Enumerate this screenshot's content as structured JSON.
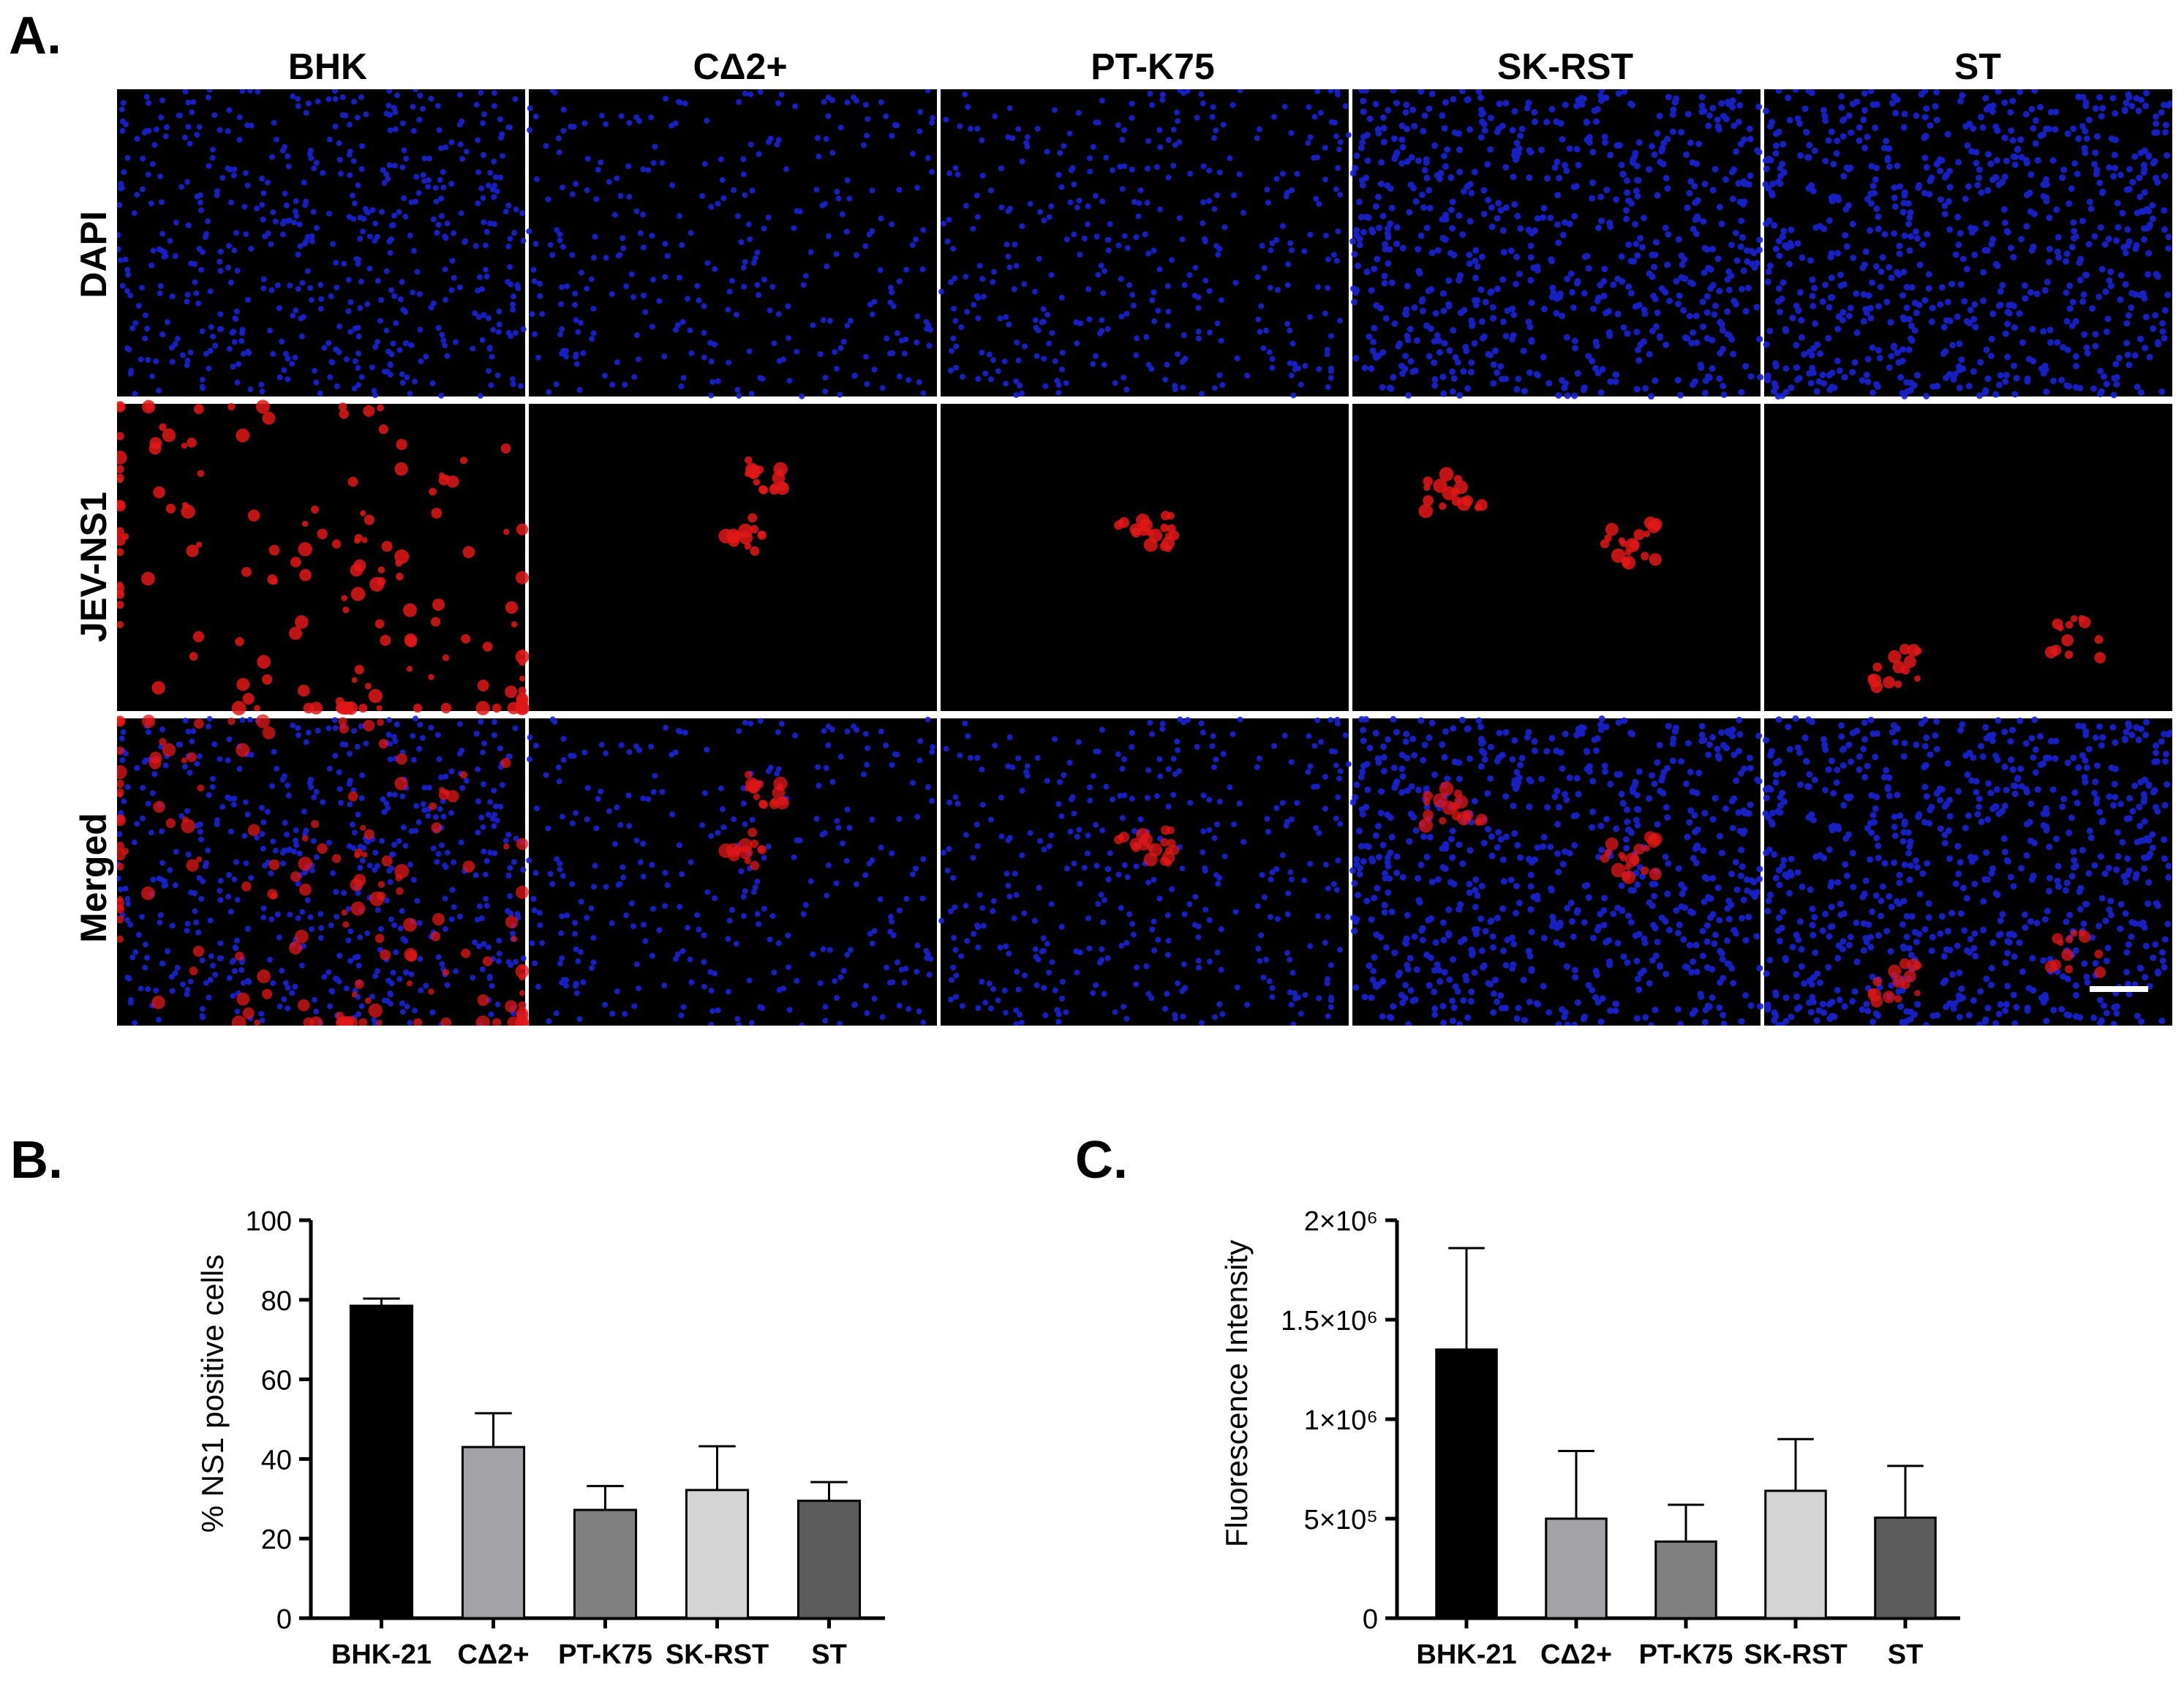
{
  "panels": {
    "a_letter": "A.",
    "b_letter": "B.",
    "c_letter": "C."
  },
  "micrographs": {
    "columns": [
      "BHK",
      "CΔ2+",
      "PT-K75",
      "SK-RST",
      "ST"
    ],
    "rows": [
      "DAPI",
      "JEV-NS1",
      "Merged"
    ],
    "colors": {
      "dapi": "#1a22d6",
      "ns1": "#e01818",
      "background": "#000000"
    },
    "scale_bar": "white scale bar"
  },
  "chart_data": [
    {
      "type": "bar",
      "panel": "B.",
      "categories": [
        "BHK-21",
        "CΔ2+",
        "PT-K75",
        "SK-RST",
        "ST"
      ],
      "values": [
        78.5,
        43.0,
        27.2,
        32.2,
        29.5
      ],
      "errors": [
        1.8,
        8.5,
        6.0,
        11.0,
        4.7
      ],
      "colors": [
        "#000000",
        "#a3a3a7",
        "#808080",
        "#d4d4d4",
        "#5c5c5c"
      ],
      "ylabel": "% NS1 positive cells",
      "xlabel": "",
      "ylim": [
        0,
        100
      ],
      "yticks": [
        0,
        20,
        40,
        60,
        80,
        100
      ],
      "ytick_labels": [
        "0",
        "20",
        "40",
        "60",
        "80",
        "100"
      ]
    },
    {
      "type": "bar",
      "panel": "C.",
      "categories": [
        "BHK-21",
        "CΔ2+",
        "PT-K75",
        "SK-RST",
        "ST"
      ],
      "values": [
        1350000,
        500000,
        385000,
        640000,
        505000
      ],
      "errors": [
        510000,
        340000,
        185000,
        260000,
        260000
      ],
      "colors": [
        "#000000",
        "#a3a3a7",
        "#808080",
        "#d4d4d4",
        "#5c5c5c"
      ],
      "ylabel": "Fluorescence Intensity",
      "xlabel": "",
      "ylim": [
        0,
        2000000
      ],
      "yticks": [
        0,
        500000,
        1000000,
        1500000,
        2000000
      ],
      "ytick_labels": [
        "0",
        "5×10⁵",
        "1×10⁶",
        "1.5×10⁶",
        "2×10⁶"
      ]
    }
  ]
}
